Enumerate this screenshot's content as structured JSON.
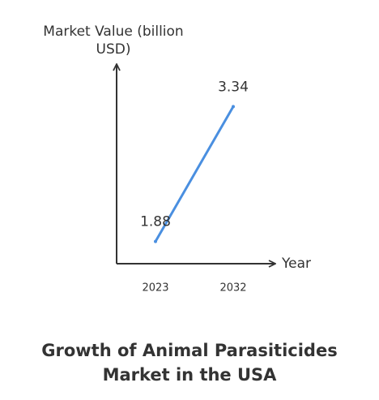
{
  "chart_data": {
    "type": "line",
    "title": [
      "Growth of Animal Parasiticides",
      "Market in the USA"
    ],
    "ylabel": [
      "Market Value (billion",
      "USD)"
    ],
    "xlabel": "Year",
    "categories": [
      "2023",
      "2032"
    ],
    "series": [
      {
        "name": "Market Value",
        "color": "#4a8fe0",
        "values": [
          1.88,
          3.34
        ]
      }
    ],
    "ylim": [
      1.64,
      3.8
    ]
  }
}
